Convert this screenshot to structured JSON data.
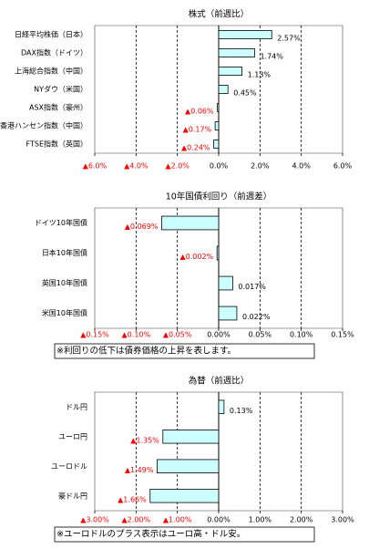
{
  "chart_data": [
    {
      "type": "bar",
      "orientation": "horizontal",
      "title": "株式（前週比）",
      "categories": [
        "日経平均株価（日本）",
        "DAX指数（ドイツ）",
        "上海総合指数（中国）",
        "NYダウ（米国）",
        "ASX指数（豪州）",
        "香港ハンセン指数（中国）",
        "FTSE指数（英国）"
      ],
      "values": [
        2.57,
        1.74,
        1.13,
        0.45,
        -0.06,
        -0.17,
        -0.24
      ],
      "value_labels": [
        "2.57%",
        "1.74%",
        "1.13%",
        "0.45%",
        "▲0.06%",
        "▲0.17%",
        "▲0.24%"
      ],
      "color": "#ccffff",
      "negative_label_color": "#ff0000",
      "xlim": [
        -6,
        6
      ],
      "xticks": [
        {
          "value": -6,
          "label": "▲6.0%"
        },
        {
          "value": -4,
          "label": "▲4.0%"
        },
        {
          "value": -2,
          "label": "▲2.0%"
        },
        {
          "value": 0,
          "label": "0.0%"
        },
        {
          "value": 2,
          "label": "2.0%"
        },
        {
          "value": 4,
          "label": "4.0%"
        },
        {
          "value": 6,
          "label": "6.0%"
        }
      ],
      "grid": true
    },
    {
      "type": "bar",
      "orientation": "horizontal",
      "title": "10年国債利回り（前週差）",
      "categories": [
        "ドイツ10年国債",
        "日本10年国債",
        "英国10年国債",
        "米国10年国債"
      ],
      "values": [
        -0.069,
        -0.002,
        0.017,
        0.022
      ],
      "value_labels": [
        "▲0.069%",
        "▲0.002%",
        "0.017%",
        "0.022%"
      ],
      "color": "#ccffff",
      "negative_label_color": "#ff0000",
      "xlim": [
        -0.15,
        0.15
      ],
      "xticks": [
        {
          "value": -0.15,
          "label": "▲0.15%"
        },
        {
          "value": -0.1,
          "label": "▲0.10%"
        },
        {
          "value": -0.05,
          "label": "▲0.05%"
        },
        {
          "value": 0,
          "label": "0.00%"
        },
        {
          "value": 0.05,
          "label": "0.05%"
        },
        {
          "value": 0.1,
          "label": "0.10%"
        },
        {
          "value": 0.15,
          "label": "0.15%"
        }
      ],
      "grid": true,
      "note": "※利回りの低下は債券価格の上昇を表します。"
    },
    {
      "type": "bar",
      "orientation": "horizontal",
      "title": "為替（前週比）",
      "categories": [
        "ドル円",
        "ユーロ円",
        "ユーロドル",
        "豪ドル円"
      ],
      "values": [
        0.13,
        -1.35,
        -1.49,
        -1.66
      ],
      "value_labels": [
        "0.13%",
        "▲1.35%",
        "▲1.49%",
        "▲1.66%"
      ],
      "color": "#ccffff",
      "negative_label_color": "#ff0000",
      "xlim": [
        -3,
        3
      ],
      "xticks": [
        {
          "value": -3,
          "label": "▲3.00%"
        },
        {
          "value": -2,
          "label": "▲2.00%"
        },
        {
          "value": -1,
          "label": "▲1.00%"
        },
        {
          "value": 0,
          "label": "0.00%"
        },
        {
          "value": 1,
          "label": "1.00%"
        },
        {
          "value": 2,
          "label": "2.00%"
        },
        {
          "value": 3,
          "label": "3.00%"
        }
      ],
      "grid": true,
      "note": "※ユーロドルのプラス表示はユーロ高・ドル安。"
    }
  ]
}
